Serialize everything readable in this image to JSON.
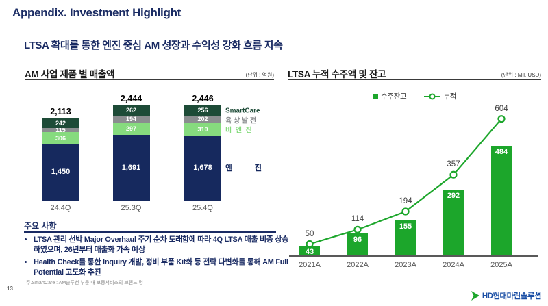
{
  "slide": {
    "header_title": "Appendix. Investment Highlight",
    "subtitle": "LTSA 확대를 통한 엔진 중심 AM 성장과 수익성 강화 흐름 지속",
    "page_number": "13",
    "footer_logo": {
      "icon": "hd-hyundai-chevron",
      "text": "HD현대마린솔루션",
      "icon_color": "#1CA62B",
      "text_color": "#1b4fa5"
    }
  },
  "key_points": {
    "title": "주요 사항",
    "bullets": [
      "LTSA 관리 선박 Major Overhaul 주기 순차 도래함에 따라 4Q LTSA 매출 비중 상승하였으며, 26년부터 매출화 가속 예상",
      "Health Check를 통한 Inquiry 개발, 정비 부품 Kit화 등 전략 다변화를 통해 AM Full Potential 고도화 추진"
    ],
    "footnote": "주.SmartCare : AM솔루션 부문 내 보증서비스의 브랜드 명"
  },
  "chart_data": [
    {
      "id": "am_revenue_by_product",
      "type": "bar",
      "stacked": true,
      "title": "AM 사업 제품 별 매출액",
      "unit_label": "(단위 : 억원)",
      "categories": [
        "24.4Q",
        "25.3Q",
        "25.4Q"
      ],
      "series": [
        {
          "name": "엔진",
          "display": "엔          진",
          "color": "#16295E",
          "values": [
            1450,
            1691,
            1678
          ]
        },
        {
          "name": "비엔진",
          "display": "비  엔  진",
          "color": "#86DB7E",
          "values": [
            306,
            297,
            310
          ]
        },
        {
          "name": "육상발전",
          "display": "육 상 발 전",
          "color": "#8A8D8F",
          "values": [
            115,
            194,
            202
          ]
        },
        {
          "name": "SmartCare",
          "display": "SmartCare",
          "color": "#1D4B37",
          "values": [
            242,
            262,
            256
          ]
        }
      ],
      "totals": [
        2113,
        2444,
        2446
      ],
      "legend_position": "right-of-last-bar",
      "grid": false
    },
    {
      "id": "ltsa_cumulative_orders_backlog",
      "type": "bar+line",
      "title": "LTSA 누적 수주액 및 잔고",
      "unit_label": "(단위 : Mil. USD)",
      "categories": [
        "2021A",
        "2022A",
        "2023A",
        "2024A",
        "2025A"
      ],
      "series": [
        {
          "name": "수주잔고",
          "type": "bar",
          "color": "#1CA62B",
          "values": [
            43,
            96,
            155,
            292,
            484
          ]
        },
        {
          "name": "누적",
          "type": "line",
          "color": "#1CA62B",
          "marker": "open-circle",
          "values": [
            50,
            114,
            194,
            357,
            604
          ]
        }
      ],
      "legend_position": "top-center",
      "grid": false
    }
  ]
}
